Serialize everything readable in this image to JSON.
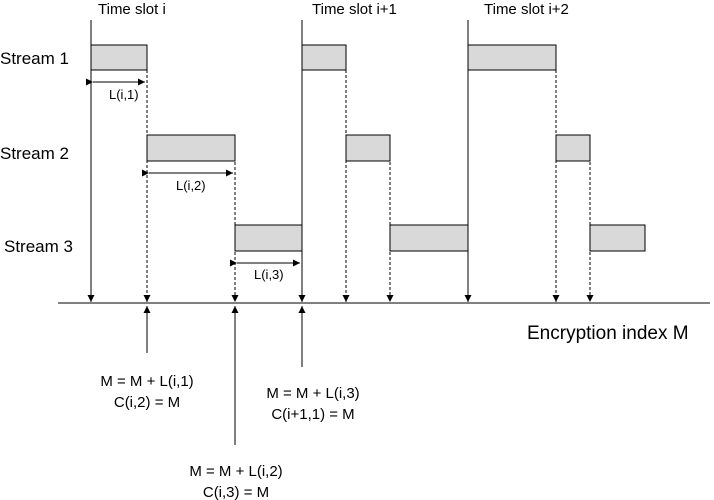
{
  "time_slots": [
    {
      "label": "Time slot i"
    },
    {
      "label": "Time slot i+1"
    },
    {
      "label": "Time slot i+2"
    }
  ],
  "streams": [
    {
      "label": "Stream 1"
    },
    {
      "label": "Stream 2"
    },
    {
      "label": "Stream 3"
    }
  ],
  "durations": [
    {
      "label": "L(i,1)"
    },
    {
      "label": "L(i,2)"
    },
    {
      "label": "L(i,3)"
    }
  ],
  "axis": {
    "label": "Encryption index M"
  },
  "annotations": [
    {
      "line1": "M = M + L(i,1)",
      "line2": "C(i,2) = M"
    },
    {
      "line1": "M = M + L(i,3)",
      "line2": "C(i+1,1) = M"
    },
    {
      "line1": "M = M + L(i,2)",
      "line2": "C(i,3) = M"
    }
  ]
}
